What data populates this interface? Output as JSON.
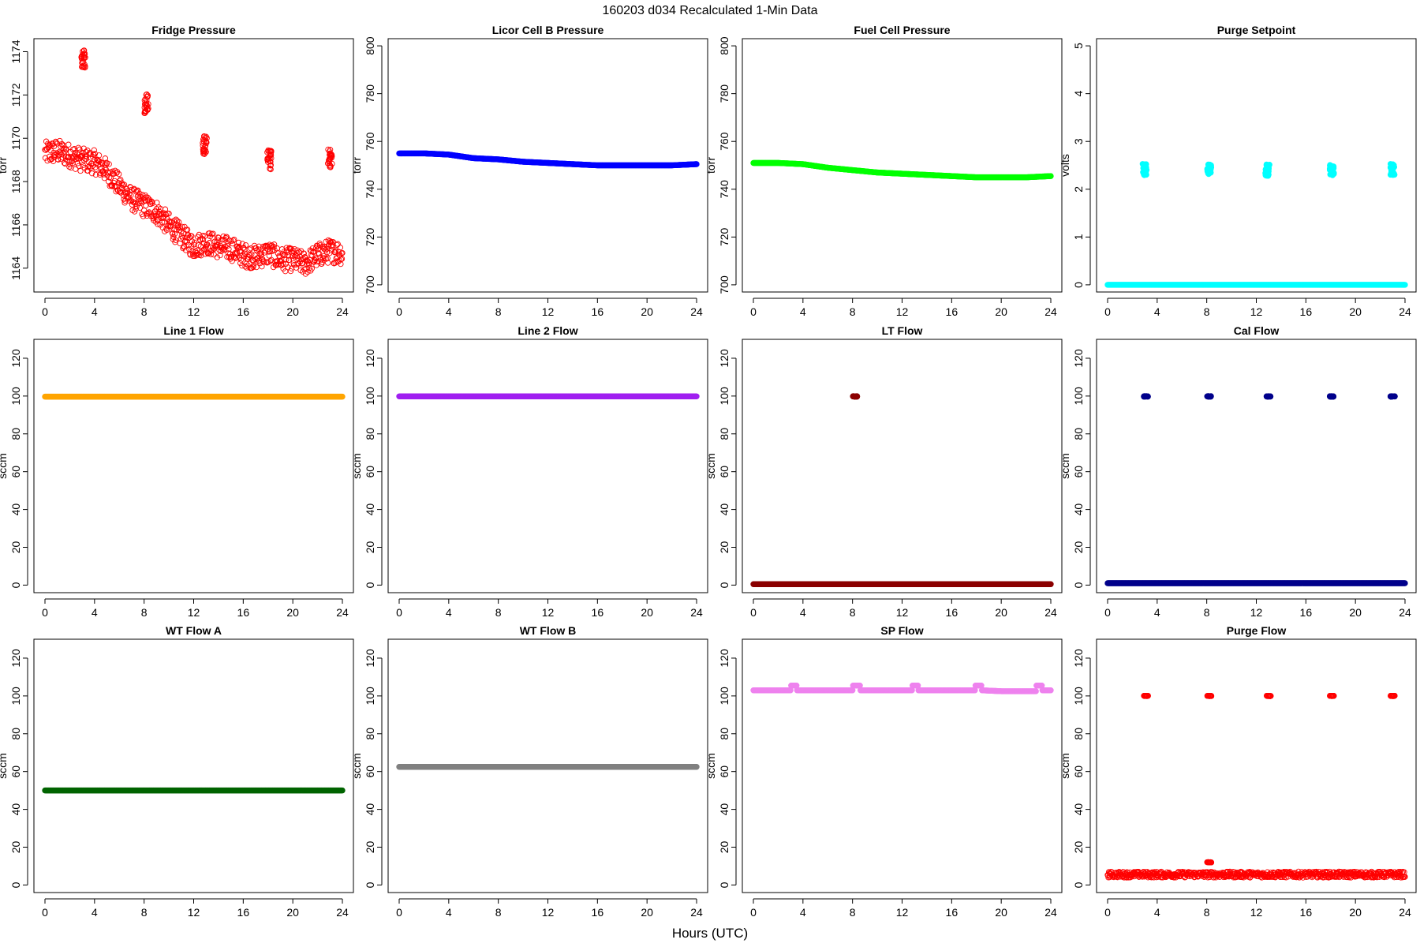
{
  "figure": {
    "title": "160203    d034    Recalculated 1-Min Data",
    "xlabel": "Hours (UTC)"
  },
  "chart_data": [
    {
      "type": "scatter",
      "title": "Fridge Pressure",
      "ylabel": "torr",
      "color": "#ff0000",
      "marker": "open-circle",
      "xlim": [
        0,
        24
      ],
      "ylim": [
        1162.9,
        1174.6
      ],
      "xticks": [
        0,
        4,
        8,
        12,
        16,
        20,
        24
      ],
      "yticks": [
        1164,
        1166,
        1168,
        1170,
        1172,
        1174
      ],
      "series": [
        {
          "x": [
            0,
            1,
            2,
            3,
            4,
            5,
            6,
            7,
            8,
            9,
            10,
            11,
            12,
            13,
            14,
            15,
            16,
            17,
            18,
            19,
            20,
            21,
            22,
            23,
            24
          ],
          "y": [
            1169.3,
            1169.4,
            1169.2,
            1169.0,
            1168.9,
            1168.5,
            1167.8,
            1167.2,
            1166.9,
            1166.6,
            1166.0,
            1165.5,
            1165.0,
            1165.2,
            1165.0,
            1164.9,
            1164.6,
            1164.5,
            1164.7,
            1164.4,
            1164.4,
            1164.2,
            1164.6,
            1164.8,
            1164.7
          ]
        }
      ],
      "spikes": [
        {
          "x": 3.1,
          "y": 1173.7
        },
        {
          "x": 8.2,
          "y": 1171.6
        },
        {
          "x": 12.9,
          "y": 1169.7
        },
        {
          "x": 18.1,
          "y": 1169.0
        },
        {
          "x": 23.0,
          "y": 1169.1
        }
      ]
    },
    {
      "type": "scatter",
      "title": "Licor Cell B Pressure",
      "ylabel": "torr",
      "color": "#0000ff",
      "marker": "filled-dense",
      "xlim": [
        0,
        24
      ],
      "ylim": [
        697,
        803
      ],
      "xticks": [
        0,
        4,
        8,
        12,
        16,
        20,
        24
      ],
      "yticks": [
        700,
        720,
        740,
        760,
        780,
        800
      ],
      "series": [
        {
          "x": [
            0,
            2,
            4,
            6,
            8,
            10,
            12,
            14,
            16,
            18,
            20,
            22,
            24
          ],
          "y": [
            755,
            755,
            754.5,
            753,
            752.5,
            751.5,
            751,
            750.5,
            750,
            750,
            750,
            750,
            750.5
          ]
        }
      ]
    },
    {
      "type": "scatter",
      "title": "Fuel Cell Pressure",
      "ylabel": "torr",
      "color": "#00ff00",
      "marker": "filled-dense",
      "xlim": [
        0,
        24
      ],
      "ylim": [
        697,
        803
      ],
      "xticks": [
        0,
        4,
        8,
        12,
        16,
        20,
        24
      ],
      "yticks": [
        700,
        720,
        740,
        760,
        780,
        800
      ],
      "series": [
        {
          "x": [
            0,
            2,
            4,
            6,
            8,
            10,
            12,
            14,
            16,
            18,
            20,
            22,
            24
          ],
          "y": [
            751,
            751,
            750.5,
            749,
            748,
            747,
            746.5,
            746,
            745.5,
            745,
            745,
            745,
            745.5
          ]
        }
      ]
    },
    {
      "type": "scatter",
      "title": "Purge Setpoint",
      "ylabel": "volts",
      "color": "#00ffff",
      "marker": "filled-dense",
      "xlim": [
        0,
        24
      ],
      "ylim": [
        -0.15,
        5.15
      ],
      "xticks": [
        0,
        4,
        8,
        12,
        16,
        20,
        24
      ],
      "yticks": [
        0,
        1,
        2,
        3,
        4,
        5
      ],
      "series": [
        {
          "x": [
            0,
            24
          ],
          "y": [
            0,
            0
          ]
        }
      ],
      "spikes": [
        {
          "x": 3.0,
          "y": 2.42
        },
        {
          "x": 8.2,
          "y": 2.4
        },
        {
          "x": 12.9,
          "y": 2.4
        },
        {
          "x": 18.1,
          "y": 2.4
        },
        {
          "x": 23.0,
          "y": 2.42
        }
      ]
    },
    {
      "type": "scatter",
      "title": "Line 1 Flow",
      "ylabel": "sccm",
      "color": "#ffa500",
      "marker": "filled-dense",
      "xlim": [
        0,
        24
      ],
      "ylim": [
        -4,
        130
      ],
      "xticks": [
        0,
        4,
        8,
        12,
        16,
        20,
        24
      ],
      "yticks": [
        0,
        20,
        40,
        60,
        80,
        100,
        120
      ],
      "series": [
        {
          "x": [
            0,
            24
          ],
          "y": [
            99.7,
            99.7
          ]
        }
      ]
    },
    {
      "type": "scatter",
      "title": "Line 2 Flow",
      "ylabel": "sccm",
      "color": "#a020f0",
      "marker": "filled-dense",
      "xlim": [
        0,
        24
      ],
      "ylim": [
        -4,
        130
      ],
      "xticks": [
        0,
        4,
        8,
        12,
        16,
        20,
        24
      ],
      "yticks": [
        0,
        20,
        40,
        60,
        80,
        100,
        120
      ],
      "series": [
        {
          "x": [
            0,
            24
          ],
          "y": [
            99.8,
            99.8
          ]
        }
      ]
    },
    {
      "type": "scatter",
      "title": "LT Flow",
      "ylabel": "sccm",
      "color": "#8b0000",
      "marker": "filled-dense",
      "xlim": [
        0,
        24
      ],
      "ylim": [
        -4,
        130
      ],
      "xticks": [
        0,
        4,
        8,
        12,
        16,
        20,
        24
      ],
      "yticks": [
        0,
        20,
        40,
        60,
        80,
        100,
        120
      ],
      "series": [
        {
          "x": [
            0,
            24
          ],
          "y": [
            0.5,
            0.5
          ]
        }
      ],
      "spikes": [
        {
          "x": 8.2,
          "y": 99.8
        }
      ]
    },
    {
      "type": "scatter",
      "title": "Cal Flow",
      "ylabel": "sccm",
      "color": "#00008b",
      "marker": "filled-dense",
      "xlim": [
        0,
        24
      ],
      "ylim": [
        -4,
        130
      ],
      "xticks": [
        0,
        4,
        8,
        12,
        16,
        20,
        24
      ],
      "yticks": [
        0,
        20,
        40,
        60,
        80,
        100,
        120
      ],
      "series": [
        {
          "x": [
            0,
            24
          ],
          "y": [
            1,
            1
          ]
        }
      ],
      "spikes": [
        {
          "x": 3.1,
          "y": 99.8
        },
        {
          "x": 8.2,
          "y": 99.8
        },
        {
          "x": 13.0,
          "y": 99.8
        },
        {
          "x": 18.1,
          "y": 99.8
        },
        {
          "x": 23.0,
          "y": 99.8
        }
      ]
    },
    {
      "type": "scatter",
      "title": "WT Flow A",
      "ylabel": "sccm",
      "color": "#006400",
      "marker": "filled-dense",
      "xlim": [
        0,
        24
      ],
      "ylim": [
        -4,
        130
      ],
      "xticks": [
        0,
        4,
        8,
        12,
        16,
        20,
        24
      ],
      "yticks": [
        0,
        20,
        40,
        60,
        80,
        100,
        120
      ],
      "series": [
        {
          "x": [
            0,
            24
          ],
          "y": [
            50,
            50
          ]
        }
      ]
    },
    {
      "type": "scatter",
      "title": "WT Flow B",
      "ylabel": "sccm",
      "color": "#808080",
      "marker": "filled-dense",
      "xlim": [
        0,
        24
      ],
      "ylim": [
        -4,
        130
      ],
      "xticks": [
        0,
        4,
        8,
        12,
        16,
        20,
        24
      ],
      "yticks": [
        0,
        20,
        40,
        60,
        80,
        100,
        120
      ],
      "series": [
        {
          "x": [
            0,
            24
          ],
          "y": [
            62.5,
            62.5
          ]
        }
      ]
    },
    {
      "type": "scatter",
      "title": "SP Flow",
      "ylabel": "sccm",
      "color": "#ee82ee",
      "marker": "filled-dense",
      "xlim": [
        0,
        24
      ],
      "ylim": [
        -4,
        130
      ],
      "xticks": [
        0,
        4,
        8,
        12,
        16,
        20,
        24
      ],
      "yticks": [
        0,
        20,
        40,
        60,
        80,
        100,
        120
      ],
      "series": [
        {
          "x": [
            0,
            3,
            3.01,
            3.5,
            3.51,
            8,
            8.01,
            8.6,
            8.61,
            12.8,
            12.81,
            13.3,
            13.31,
            17.9,
            17.91,
            18.4,
            18.41,
            20,
            22,
            22.8,
            22.81,
            23.3,
            23.31,
            24
          ],
          "y": [
            103,
            103,
            105.5,
            105.5,
            103,
            103,
            105.5,
            105.5,
            103,
            103,
            105.5,
            105.5,
            103,
            103,
            105.5,
            105.5,
            103,
            102.5,
            102.5,
            102.5,
            105.5,
            105.5,
            103,
            103
          ]
        }
      ]
    },
    {
      "type": "scatter",
      "title": "Purge Flow",
      "ylabel": "sccm",
      "color": "#ff0000",
      "marker": "open-circle",
      "xlim": [
        0,
        24
      ],
      "ylim": [
        -4,
        130
      ],
      "xticks": [
        0,
        4,
        8,
        12,
        16,
        20,
        24
      ],
      "yticks": [
        0,
        20,
        40,
        60,
        80,
        100,
        120
      ],
      "series": [
        {
          "x": [
            0,
            24
          ],
          "y": [
            5.5,
            5.5
          ]
        }
      ],
      "spikes": [
        {
          "x": 3.1,
          "y": 100
        },
        {
          "x": 8.2,
          "y": 100
        },
        {
          "x": 13.0,
          "y": 100
        },
        {
          "x": 18.1,
          "y": 100
        },
        {
          "x": 23.0,
          "y": 100
        },
        {
          "x": 8.2,
          "y": 12
        }
      ]
    }
  ]
}
